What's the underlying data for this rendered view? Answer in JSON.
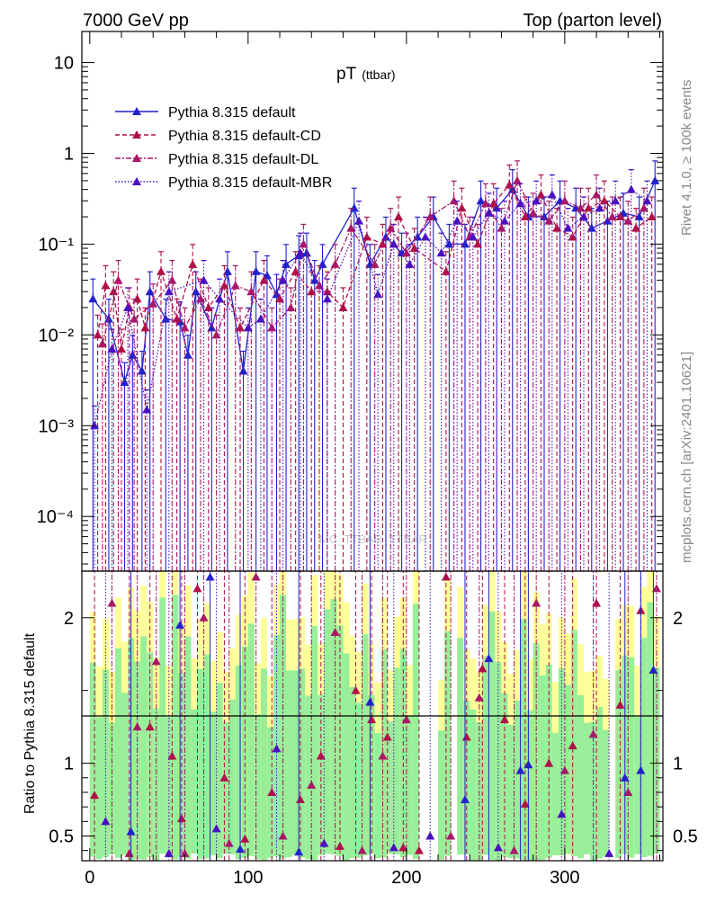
{
  "header": {
    "left": "7000 GeV pp",
    "right": "Top (parton level)"
  },
  "side_labels": {
    "rivet": "Rivet 4.1.0, ≥ 100k events",
    "mcplots": "mcplots.cern.ch [arXiv:2401.10621]"
  },
  "chart_data": {
    "type": "line",
    "title": "pT",
    "title_sub": "(ttbar)",
    "watermark": "MC_TTBAR_TTBAR",
    "xlabel": "",
    "ylabel_ratio": "Ratio to Pythia 8.315 default",
    "xlim": [
      -5,
      362
    ],
    "ylim_main": [
      2.5e-05,
      22
    ],
    "ylim_ratio": [
      0.33,
      2.32
    ],
    "x_ticks": [
      "0",
      "100",
      "200",
      "300"
    ],
    "y_ticks_main": [
      "10",
      "1",
      "10⁻¹",
      "10⁻²",
      "10⁻³",
      "10⁻⁴"
    ],
    "y_ticks_ratio": [
      "2",
      "1",
      "0.5"
    ],
    "legend": [
      {
        "name": "Pythia 8.315 default",
        "color": "#2222cc",
        "dash": "solid"
      },
      {
        "name": "Pythia 8.315 default-CD",
        "color": "#b01048",
        "dash": "dashed"
      },
      {
        "name": "Pythia 8.315 default-DL",
        "color": "#a81868",
        "dash": "dashdot"
      },
      {
        "name": "Pythia 8.315 default-MBR",
        "color": "#4a10c0",
        "dash": "dotted"
      }
    ],
    "series": [
      {
        "name": "Pythia 8.315 default",
        "x": [
          2,
          12,
          22,
          27,
          33,
          38,
          48,
          57,
          62,
          67,
          77,
          87,
          97,
          105,
          112,
          118,
          124,
          132,
          137,
          142,
          147,
          167,
          177,
          187,
          197,
          207,
          217,
          227,
          237,
          247,
          257,
          267,
          277,
          287,
          297,
          307,
          317,
          327,
          337,
          347,
          357
        ],
        "y": [
          0.025,
          0.015,
          0.003,
          0.006,
          0.004,
          0.03,
          0.015,
          0.014,
          0.006,
          0.03,
          0.012,
          0.05,
          0.004,
          0.05,
          0.045,
          0.028,
          0.06,
          0.075,
          0.08,
          0.04,
          0.06,
          0.25,
          0.06,
          0.12,
          0.08,
          0.12,
          0.2,
          0.1,
          0.1,
          0.3,
          0.25,
          0.4,
          0.2,
          0.2,
          0.3,
          0.25,
          0.15,
          0.18,
          0.22,
          0.2,
          0.5
        ]
      },
      {
        "name": "Pythia 8.315 default-CD",
        "x": [
          5,
          10,
          15,
          20,
          25,
          30,
          35,
          45,
          55,
          65,
          75,
          85,
          95,
          110,
          120,
          130,
          140,
          150,
          160,
          175,
          185,
          195,
          205,
          225,
          235,
          245,
          255,
          265,
          275,
          285,
          295,
          305,
          315,
          325,
          335,
          345,
          355
        ],
        "y": [
          0.01,
          0.035,
          0.03,
          0.007,
          0.02,
          0.025,
          0.012,
          0.05,
          0.015,
          0.06,
          0.02,
          0.035,
          0.012,
          0.04,
          0.025,
          0.05,
          0.03,
          0.03,
          0.02,
          0.12,
          0.1,
          0.2,
          0.09,
          0.05,
          0.25,
          0.1,
          0.28,
          0.45,
          0.2,
          0.35,
          0.15,
          0.12,
          0.25,
          0.3,
          0.2,
          0.15,
          0.2
        ]
      },
      {
        "name": "Pythia 8.315 default-DL",
        "x": [
          8,
          18,
          28,
          40,
          52,
          60,
          70,
          80,
          92,
          102,
          115,
          127,
          135,
          145,
          155,
          165,
          180,
          190,
          200,
          215,
          230,
          240,
          250,
          260,
          270,
          280,
          290,
          300,
          310,
          320,
          330,
          340,
          350
        ],
        "y": [
          0.008,
          0.04,
          0.015,
          0.022,
          0.04,
          0.012,
          0.025,
          0.01,
          0.035,
          0.03,
          0.012,
          0.02,
          0.1,
          0.035,
          0.06,
          0.15,
          0.06,
          0.15,
          0.08,
          0.2,
          0.3,
          0.12,
          0.28,
          0.15,
          0.5,
          0.22,
          0.18,
          0.3,
          0.25,
          0.35,
          0.2,
          0.18,
          0.25
        ]
      },
      {
        "name": "Pythia 8.315 default-MBR",
        "x": [
          3,
          14,
          24,
          36,
          50,
          72,
          82,
          100,
          108,
          122,
          133,
          150,
          170,
          182,
          192,
          202,
          212,
          222,
          232,
          242,
          252,
          262,
          272,
          282,
          292,
          302,
          312,
          322,
          332,
          342,
          352
        ],
        "y": [
          0.001,
          0.007,
          0.02,
          0.0015,
          0.03,
          0.04,
          0.025,
          0.012,
          0.015,
          0.04,
          0.08,
          0.025,
          0.18,
          0.028,
          0.1,
          0.06,
          0.12,
          0.08,
          0.18,
          0.12,
          0.22,
          0.18,
          0.28,
          0.3,
          0.35,
          0.15,
          0.2,
          0.25,
          0.3,
          0.4,
          0.3
        ]
      }
    ],
    "ratio_points": [
      {
        "series": 1,
        "x": [
          3,
          25,
          38,
          52,
          58,
          68,
          85,
          98,
          115,
          133,
          146,
          158,
          168,
          178,
          188,
          198,
          208,
          225,
          238,
          248,
          262,
          275,
          290,
          305,
          320,
          335,
          348
        ],
        "y": [
          0.78,
          0.38,
          1.25,
          1.05,
          0.62,
          2.2,
          0.9,
          0.48,
          0.8,
          0.75,
          1.05,
          0.43,
          1.5,
          1.3,
          1.18,
          0.42,
          0.4,
          2.35,
          1.18,
          1.65,
          1.3,
          0.72,
          1.0,
          1.12,
          2.1,
          1.4,
          2.05
        ]
      },
      {
        "series": 2,
        "x": [
          14,
          30,
          42,
          60,
          72,
          88,
          105,
          122,
          140,
          155,
          172,
          185,
          200,
          228,
          246,
          268,
          282,
          300,
          318,
          340,
          358
        ],
        "y": [
          2.1,
          1.25,
          1.7,
          0.38,
          2.0,
          0.45,
          2.45,
          0.5,
          0.85,
          1.9,
          0.4,
          1.05,
          1.3,
          0.5,
          1.45,
          0.4,
          2.1,
          0.95,
          1.2,
          0.8,
          2.2
        ]
      },
      {
        "series": 0,
        "x": [
          26,
          57,
          76,
          95,
          132,
          177,
          237,
          252,
          272,
          277,
          338,
          348,
          356
        ],
        "y": [
          0.53,
          1.95,
          2.3,
          0.41,
          0.39,
          1.42,
          0.75,
          1.72,
          0.95,
          0.99,
          0.9,
          0.95,
          1.64
        ]
      },
      {
        "series": 3,
        "x": [
          10,
          50,
          80,
          118,
          148,
          192,
          215,
          258,
          298,
          328
        ],
        "y": [
          0.6,
          0.38,
          0.55,
          1.1,
          0.45,
          0.42,
          0.5,
          0.42,
          0.65,
          0.38
        ]
      }
    ]
  }
}
